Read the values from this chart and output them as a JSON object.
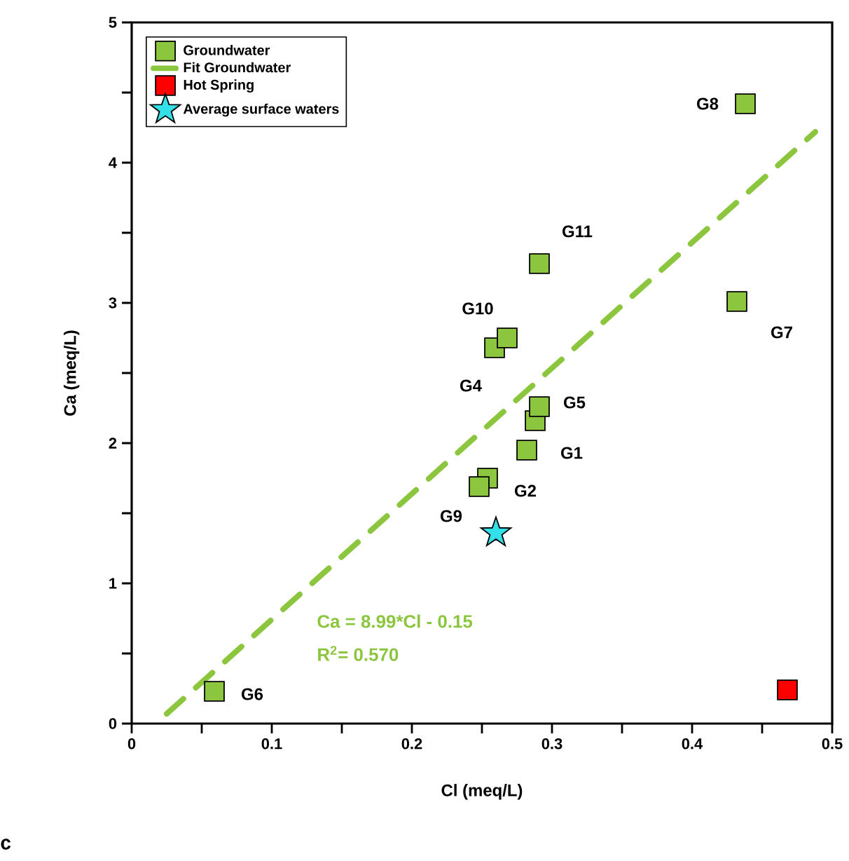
{
  "chart_data": {
    "type": "scatter",
    "xlabel": "Cl (meq/L)",
    "ylabel": "Ca (meq/L)",
    "xlim": [
      0,
      0.5
    ],
    "ylim": [
      0,
      5
    ],
    "xticks": [
      0,
      {
        "value": 0.05,
        "label": null
      },
      0.1,
      {
        "value": 0.15,
        "label": null
      },
      0.2,
      {
        "value": 0.25,
        "label": null
      },
      0.3,
      {
        "value": 0.35,
        "label": null
      },
      0.4,
      {
        "value": 0.45,
        "label": null
      },
      0.5
    ],
    "yticks": [
      0,
      {
        "value": 0.5,
        "label": null
      },
      1,
      {
        "value": 1.5,
        "label": null
      },
      2,
      {
        "value": 2.5,
        "label": null
      },
      3,
      {
        "value": 3.5,
        "label": null
      },
      4,
      {
        "value": 4.5,
        "label": null
      },
      5
    ],
    "legend": "top left",
    "grid": false,
    "series": [
      {
        "name": "Groundwater",
        "type": "scatter",
        "marker": "square",
        "color": "#8cc63f",
        "x": [
          0.282,
          0.254,
          0.288,
          0.259,
          0.291,
          0.059,
          0.432,
          0.438,
          0.248,
          0.268,
          0.291
        ],
        "values": [
          1.95,
          1.75,
          2.16,
          2.68,
          2.26,
          0.23,
          3.01,
          4.42,
          1.69,
          2.75,
          3.28
        ]
      },
      {
        "name": "Fit Groundwater",
        "type": "line",
        "line_style": "dashed",
        "marker": "none",
        "color": "#8cc63f",
        "x": [
          0.025,
          0.488
        ],
        "values": [
          0.07,
          4.22
        ]
      },
      {
        "name": "Hot Spring",
        "type": "scatter",
        "marker": "square",
        "color": "#ff0000",
        "x": [
          0.468
        ],
        "values": [
          0.24
        ]
      },
      {
        "name": "Average surface waters",
        "type": "scatter",
        "marker": "star",
        "color": "#33e0e8",
        "x": [
          0.26
        ],
        "values": [
          1.36
        ]
      }
    ],
    "annotations": [
      {
        "text": "G1",
        "x": 0.282,
        "y": 1.95
      },
      {
        "text": "G2",
        "x": 0.254,
        "y": 1.75
      },
      {
        "text": "G4",
        "x": 0.259,
        "y": 2.68
      },
      {
        "text": "G5",
        "x": 0.291,
        "y": 2.26
      },
      {
        "text": "G6",
        "x": 0.059,
        "y": 0.23
      },
      {
        "text": "G7",
        "x": 0.432,
        "y": 3.01
      },
      {
        "text": "G8",
        "x": 0.438,
        "y": 4.42
      },
      {
        "text": "G9",
        "x": 0.248,
        "y": 1.69
      },
      {
        "text": "G10",
        "x": 0.268,
        "y": 2.75
      },
      {
        "text": "G11",
        "x": 0.291,
        "y": 3.28
      },
      "Ca = 8.99*Cl - 0.15",
      "R$^{2}$= 0.570",
      "c"
    ]
  }
}
